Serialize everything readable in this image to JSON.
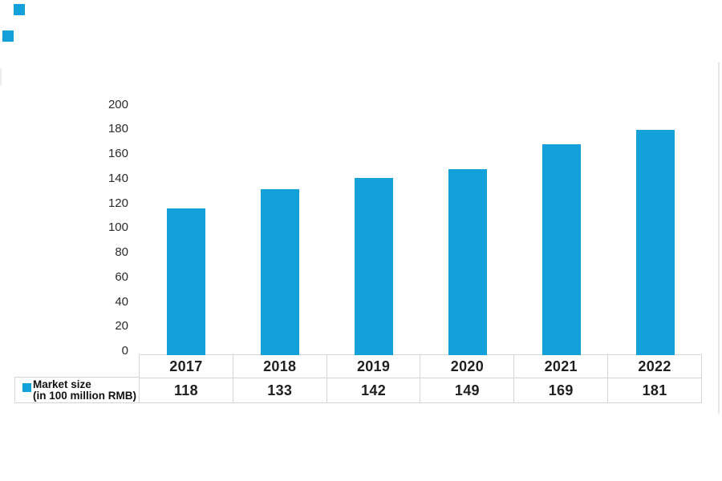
{
  "chart_data": {
    "type": "bar",
    "title": "",
    "categories": [
      "2017",
      "2018",
      "2019",
      "2020",
      "2021",
      "2022"
    ],
    "series": [
      {
        "name": "Market size (in 100 million RMB)",
        "values": [
          118,
          133,
          142,
          149,
          169,
          181
        ]
      }
    ],
    "xlabel": "",
    "ylabel": "",
    "ylim": [
      0,
      200
    ],
    "yticks": [
      0,
      20,
      40,
      60,
      80,
      100,
      120,
      140,
      160,
      180,
      200
    ],
    "ytick_labels": [
      "0",
      "20",
      "40",
      "60",
      "80",
      "100",
      "120",
      "140",
      "160",
      "180",
      "200"
    ],
    "grid": false,
    "legend_position": "bottom-left",
    "has_value_table": true,
    "bar_color": "#14A0D9"
  },
  "legend": {
    "line1": "Market size",
    "line2": "(in 100 million RMB)"
  },
  "colors": {
    "bar": "#14A0D9",
    "table_border": "#D5D5D5",
    "text": "#1F1F1F",
    "axis_text": "#2B2B2B",
    "frame_line": "#E6E6E6"
  }
}
